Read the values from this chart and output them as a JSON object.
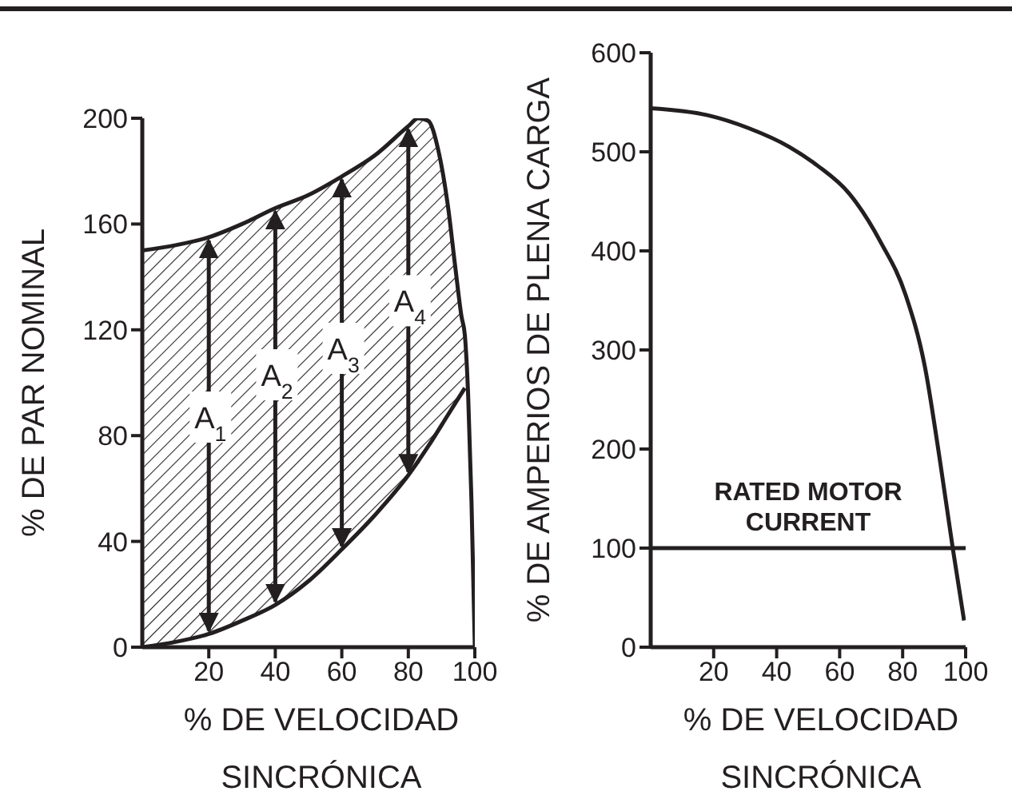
{
  "chart_data": [
    {
      "type": "line",
      "xlabel": "% DE VELOCIDAD SINCRÓNICA",
      "ylabel": "% DE PAR NOMINAL",
      "xlim": [
        0,
        100
      ],
      "xticks": [
        20,
        40,
        60,
        80,
        100
      ],
      "ylim": [
        0,
        200
      ],
      "yticks": [
        0,
        40,
        80,
        120,
        160,
        200
      ],
      "series": [
        {
          "type": "line",
          "color": "#231f20",
          "x": [
            0,
            10,
            20,
            30,
            40,
            50,
            60,
            70,
            80,
            83,
            86,
            89,
            92,
            94,
            96,
            97,
            98,
            99,
            100
          ],
          "values": [
            150,
            152,
            155,
            160,
            166,
            171,
            178,
            186,
            197,
            200,
            199,
            188,
            166,
            145,
            125,
            118,
            95,
            55,
            0
          ],
          "lower": [
            0,
            2,
            5,
            10,
            16,
            25,
            37,
            50,
            65,
            69,
            76,
            82,
            88,
            92,
            96,
            98,
            null,
            null,
            null
          ],
          "upper": [
            150,
            152,
            155,
            160,
            166,
            171,
            178,
            186,
            197,
            200,
            199,
            188,
            166,
            145,
            125,
            118,
            null,
            null,
            null
          ]
        },
        {
          "type": "line",
          "color": "#231f20",
          "x": [
            0,
            10,
            20,
            30,
            40,
            50,
            60,
            70,
            80,
            86,
            92,
            97
          ],
          "values": [
            0,
            2,
            5,
            10,
            16,
            25,
            37,
            50,
            65,
            76,
            88,
            98
          ]
        }
      ],
      "annotations": [
        {
          "text": "A$_{1}$",
          "x": 20,
          "y": 87
        },
        {
          "text": "A$_{2}$",
          "x": 40,
          "y": 103
        },
        {
          "text": "A$_{3}$",
          "x": 60,
          "y": 113
        },
        {
          "text": "A$_{4}$",
          "x": 80,
          "y": 131
        }
      ]
    },
    {
      "type": "line",
      "xlabel": "% DE VELOCIDAD SINCRÓNICA",
      "ylabel": "% DE AMPERIOS DE PLENA CARGA",
      "xlim": [
        0,
        100
      ],
      "xticks": [
        20,
        40,
        60,
        80,
        100
      ],
      "ylim": [
        0,
        600
      ],
      "yticks": [
        0,
        100,
        200,
        300,
        400,
        500,
        600
      ],
      "series": [
        {
          "color": "#231f20",
          "x": [
            0,
            18,
            31,
            44,
            53,
            63,
            73,
            81,
            87,
            92,
            96,
            99.5
          ],
          "values": [
            544,
            537,
            524,
            505,
            486,
            458,
            409,
            355,
            284,
            185,
            98,
            27
          ]
        }
      ],
      "ref_lines": [
        {
          "axis": "y",
          "value": 100,
          "label": "RATED MOTOR CURRENT",
          "color": "#231f20"
        }
      ]
    }
  ]
}
